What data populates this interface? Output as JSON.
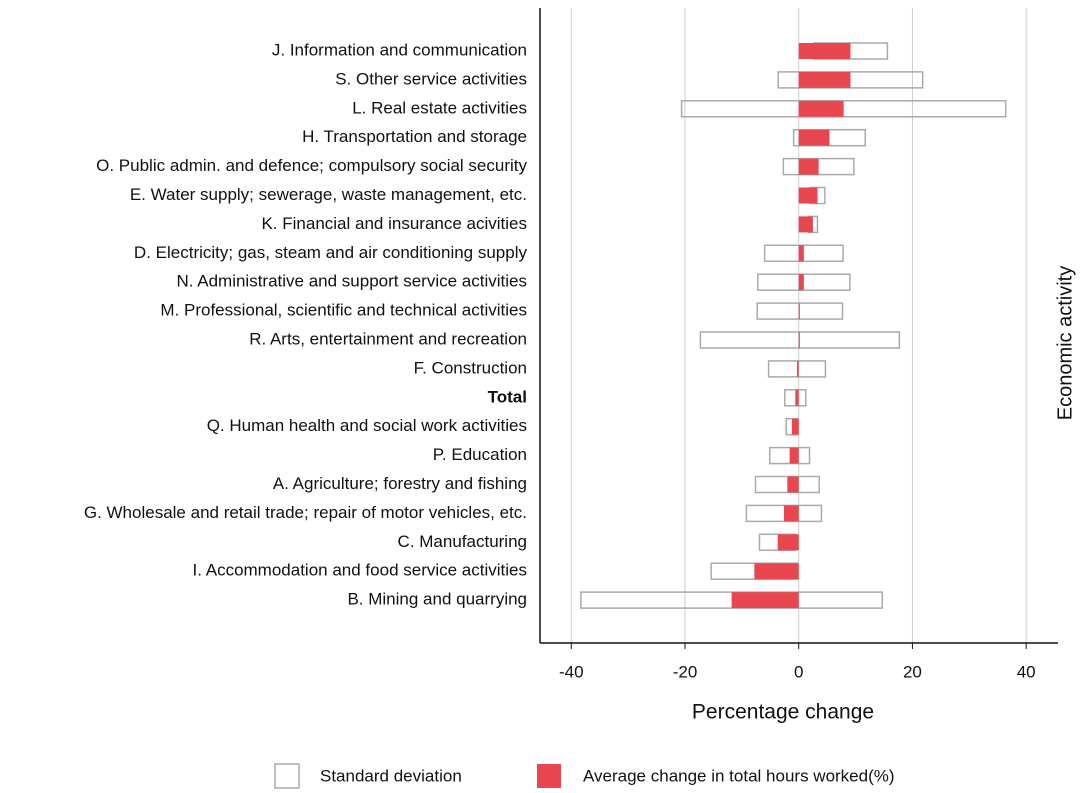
{
  "chart_data": {
    "type": "bar",
    "orientation": "horizontal",
    "x_label": "Percentage change",
    "y_label": "Economic activity",
    "categories": [
      "J. Information and communication",
      "S. Other service activities",
      "L. Real estate activities",
      "H. Transportation and storage",
      "O. Public admin. and defence; compulsory social security",
      "E. Water supply; sewerage, waste management, etc.",
      "K. Financial and insurance acivities",
      "D. Electricity; gas, steam and air conditioning supply",
      "N. Administrative and support service activities",
      "M. Professional, scientific and technical activities",
      "R. Arts, entertainment and recreation",
      "F. Construction",
      "Total",
      "Q. Human health and social work activities",
      "P. Education",
      "A. Agriculture; forestry and fishing",
      "G. Wholesale and retail trade; repair of motor vehicles, etc.",
      "C. Manufacturing",
      "I. Accommodation and food service activities",
      "B. Mining and quarrying"
    ],
    "series": [
      {
        "name": "Standard deviation",
        "color": "#aaaaaa",
        "values": [
          6.5,
          12.7,
          28.5,
          6.3,
          6.2,
          1.3,
          0.8,
          6.9,
          8.1,
          7.5,
          17.5,
          5,
          1.85,
          1,
          3.5,
          5.6,
          6.6,
          3.2,
          7.6,
          26.5
        ]
      },
      {
        "name": "Average change in total hours worked(%)",
        "color": "#e8474f",
        "values": [
          9.1,
          9.1,
          7.9,
          5.4,
          3.5,
          3.3,
          2.5,
          0.9,
          0.9,
          0.2,
          0.2,
          -0.3,
          -0.6,
          -1.2,
          -1.6,
          -2,
          -2.6,
          -3.7,
          -7.8,
          -11.8
        ]
      }
    ],
    "xlim": [
      -45.5,
      45.6
    ],
    "xticks": [
      -40,
      -20,
      0,
      20,
      40
    ],
    "grid": true
  }
}
